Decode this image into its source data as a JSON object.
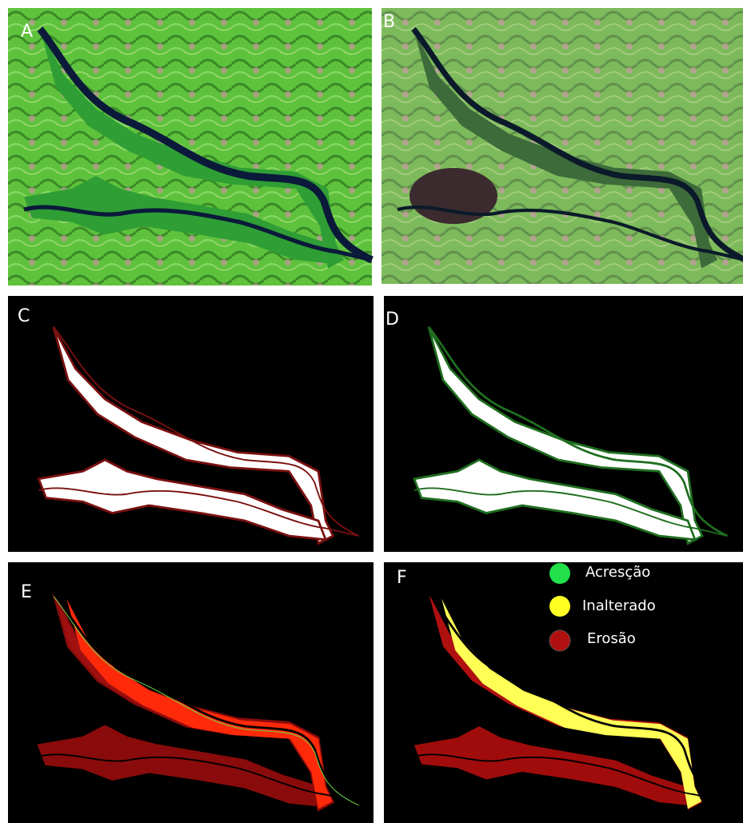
{
  "panels": [
    {
      "label": "A"
    },
    {
      "label": "B"
    },
    {
      "label": "C"
    },
    {
      "label": "D"
    },
    {
      "label": "E"
    },
    {
      "label": "F"
    }
  ],
  "legend": [
    {
      "label": "Acresção"
    },
    {
      "label": "Inalterado"
    },
    {
      "label": "Erosão"
    }
  ]
}
